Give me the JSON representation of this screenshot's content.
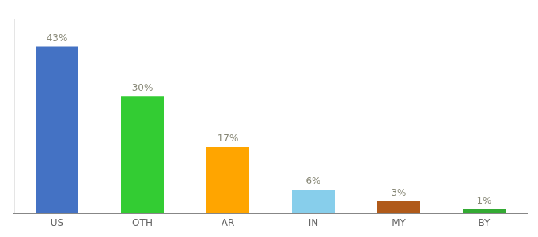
{
  "chart_data": {
    "type": "bar",
    "categories": [
      "US",
      "OTH",
      "AR",
      "IN",
      "MY",
      "BY"
    ],
    "values": [
      43,
      30,
      17,
      6,
      3,
      1
    ],
    "value_labels": [
      "43%",
      "30%",
      "17%",
      "6%",
      "3%",
      "1%"
    ],
    "colors": [
      "#4472C4",
      "#33CC33",
      "#FFA500",
      "#87CEEB",
      "#B05A1A",
      "#33AA33"
    ],
    "ylim": [
      0,
      50
    ],
    "grid": false,
    "data_labels": true,
    "tick_labels": "x"
  }
}
